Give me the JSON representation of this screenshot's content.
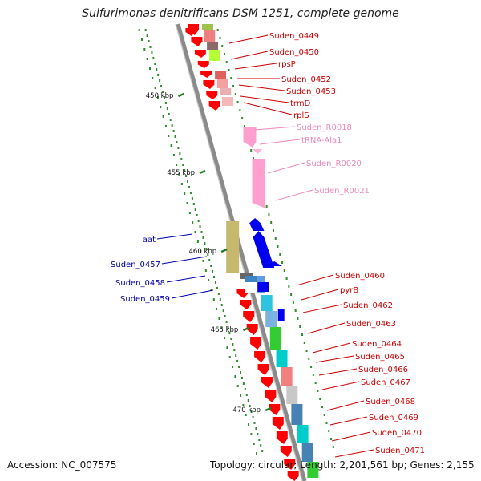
{
  "title": "Sulfurimonas denitrificans DSM 1251, complete genome",
  "accession": "Accession: NC_007575",
  "summary": "Topology: circular; Length: 2,201,561 bp; Genes: 2,155",
  "colors": {
    "forward_label": "#cc0000",
    "reverse_label": "#0000aa",
    "rna_label": "#ee88bb",
    "backbone": "#8a8a8a",
    "kbp_tick": "#1f7f1f",
    "forward_cds": "#ff0000",
    "reverse_cds": "#0000ee",
    "rna_feature": "#ff9fcf"
  },
  "kbp_ticks": [
    {
      "label": "450 kbp"
    },
    {
      "label": "455 kbp"
    },
    {
      "label": "460 kbp"
    },
    {
      "label": "465 kbp"
    },
    {
      "label": "470 kbp"
    }
  ],
  "labels_right": [
    {
      "text": "Suden_0449",
      "kind": "forward"
    },
    {
      "text": "Suden_0450",
      "kind": "forward"
    },
    {
      "text": "rpsP",
      "kind": "forward"
    },
    {
      "text": "Suden_0452",
      "kind": "forward"
    },
    {
      "text": "Suden_0453",
      "kind": "forward"
    },
    {
      "text": "trmD",
      "kind": "forward"
    },
    {
      "text": "rplS",
      "kind": "forward"
    },
    {
      "text": "Suden_R0018",
      "kind": "rna"
    },
    {
      "text": "tRNA-Ala1",
      "kind": "rna"
    },
    {
      "text": "Suden_R0020",
      "kind": "rna"
    },
    {
      "text": "Suden_R0021",
      "kind": "rna"
    },
    {
      "text": "Suden_0460",
      "kind": "forward"
    },
    {
      "text": "pyrB",
      "kind": "forward"
    },
    {
      "text": "Suden_0462",
      "kind": "forward"
    },
    {
      "text": "Suden_0463",
      "kind": "forward"
    },
    {
      "text": "Suden_0464",
      "kind": "forward"
    },
    {
      "text": "Suden_0465",
      "kind": "forward"
    },
    {
      "text": "Suden_0466",
      "kind": "forward"
    },
    {
      "text": "Suden_0467",
      "kind": "forward"
    },
    {
      "text": "Suden_0468",
      "kind": "forward"
    },
    {
      "text": "Suden_0469",
      "kind": "forward"
    },
    {
      "text": "Suden_0470",
      "kind": "forward"
    },
    {
      "text": "Suden_0471",
      "kind": "forward"
    }
  ],
  "labels_left": [
    {
      "text": "aat",
      "kind": "reverse"
    },
    {
      "text": "Suden_0457",
      "kind": "reverse"
    },
    {
      "text": "Suden_0458",
      "kind": "reverse"
    },
    {
      "text": "Suden_0459",
      "kind": "reverse"
    }
  ]
}
